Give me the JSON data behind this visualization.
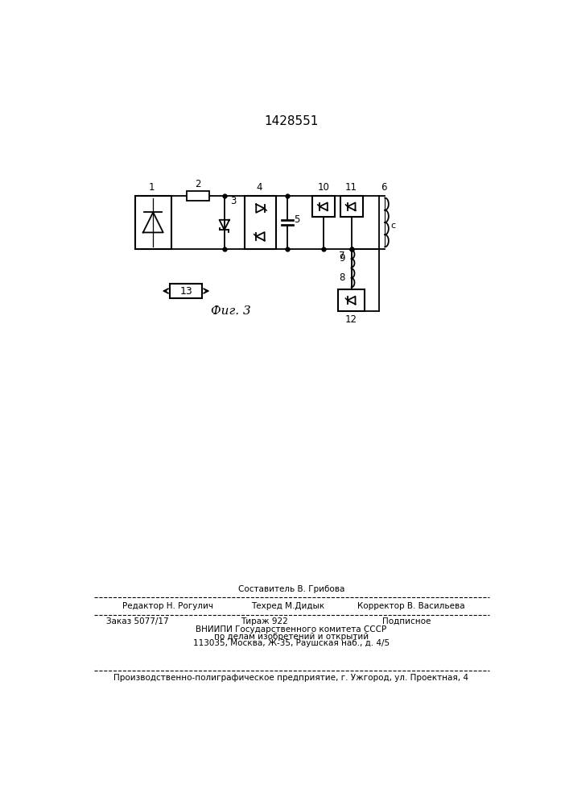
{
  "title": "1428551",
  "background_color": "#ffffff",
  "line_color": "#000000",
  "fig_label": "Фиг. 3",
  "label_1": "1",
  "label_2": "2",
  "label_3": "3",
  "label_4": "4",
  "label_5": "5",
  "label_6": "6",
  "label_7": "7",
  "label_8": "8",
  "label_9": "9",
  "label_10": "10",
  "label_11": "11",
  "label_12": "12",
  "label_13": "13",
  "label_c": "c",
  "footer_sestavitel": "Составитель В. Грибова",
  "footer_redaktor": "Редактор Н. Рогулич",
  "footer_tehred": "Техред М.Дидык",
  "footer_korrektor": "Корректор В. Васильева",
  "footer_zakaz": "Заказ 5077/17",
  "footer_tirazh": "Тираж 922",
  "footer_podpisnoe": "Подписное",
  "footer_vniiipi": "ВНИИПИ Государственного комитета СССР",
  "footer_po_delam": "по делам изобретений и открытий",
  "footer_address": "113035, Москва, Ж-35, Раушская наб., д. 4/5",
  "footer_factory": "Производственно-полиграфическое предприятие, г. Ужгород, ул. Проектная, 4"
}
